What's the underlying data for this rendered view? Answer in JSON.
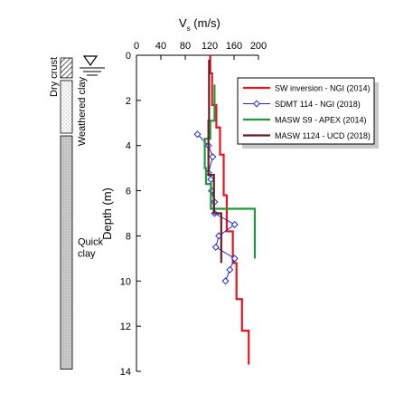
{
  "chart_data": {
    "type": "line",
    "xlabel_main": "V",
    "xlabel_sub": "s",
    "xlabel_unit": " (m/s)",
    "ylabel": "Depth (m)",
    "xlim": [
      0,
      200
    ],
    "ylim": [
      0,
      14
    ],
    "x_axis_position": "top",
    "y_inverted": true,
    "grid": false,
    "legend_position": "top-right",
    "xticks": [
      "0",
      "40",
      "80",
      "120",
      "160",
      "200"
    ],
    "yticks": [
      "0",
      "2",
      "4",
      "6",
      "8",
      "10",
      "12",
      "14"
    ],
    "series": [
      {
        "name": "SW inversion - NGI (2014)",
        "color": "#e8141c",
        "marker": "none",
        "step": true,
        "points": [
          [
            121,
            0
          ],
          [
            121,
            0.8
          ],
          [
            124,
            0.8
          ],
          [
            124,
            2.2
          ],
          [
            131,
            2.2
          ],
          [
            131,
            3.2
          ],
          [
            137,
            3.2
          ],
          [
            137,
            4.4
          ],
          [
            143,
            4.4
          ],
          [
            143,
            6.2
          ],
          [
            148,
            6.2
          ],
          [
            148,
            7.8
          ],
          [
            158,
            7.8
          ],
          [
            158,
            9.2
          ],
          [
            164,
            9.2
          ],
          [
            164,
            10.8
          ],
          [
            173,
            10.8
          ],
          [
            173,
            12.2
          ],
          [
            184,
            12.2
          ],
          [
            184,
            13.7
          ]
        ]
      },
      {
        "name": "SDMT 114 - NGI (2018)",
        "color": "#1a2ad8",
        "marker": "diamond",
        "step": false,
        "points": [
          [
            100,
            3.5
          ],
          [
            118,
            4.0
          ],
          [
            125,
            4.5
          ],
          [
            118,
            5.2
          ],
          [
            122,
            5.5
          ],
          [
            123,
            6.0
          ],
          [
            128,
            6.5
          ],
          [
            128,
            7.0
          ],
          [
            161,
            7.5
          ],
          [
            135,
            8.0
          ],
          [
            130,
            8.5
          ],
          [
            161,
            9.0
          ],
          [
            153,
            9.5
          ],
          [
            146,
            10.0
          ]
        ]
      },
      {
        "name": "MASW S9 - APEX (2014)",
        "color": "#1f9a3a",
        "marker": "none",
        "step": true,
        "points": [
          [
            128,
            1.3
          ],
          [
            128,
            2.9
          ],
          [
            121,
            2.9
          ],
          [
            121,
            3.7
          ],
          [
            112,
            3.7
          ],
          [
            112,
            5.0
          ],
          [
            114,
            5.0
          ],
          [
            114,
            5.7
          ],
          [
            122,
            5.7
          ],
          [
            122,
            6.8
          ],
          [
            194,
            6.8
          ],
          [
            194,
            9.0
          ]
        ]
      },
      {
        "name": "MASW 1124 - UCD (2018)",
        "color": "#6b1e20",
        "marker": "none",
        "step": true,
        "points": [
          [
            119,
            0.2
          ],
          [
            119,
            2.9
          ],
          [
            118,
            2.9
          ],
          [
            118,
            5.3
          ],
          [
            127,
            5.3
          ],
          [
            127,
            7.0
          ],
          [
            139,
            7.0
          ],
          [
            139,
            9.2
          ]
        ]
      }
    ]
  },
  "soil_column": {
    "layers": [
      {
        "label": "Dry crust",
        "top": 0.0,
        "bottom": 1.0,
        "pattern": "hatch"
      },
      {
        "label": "Weathered clay",
        "top": 1.0,
        "bottom": 3.45,
        "pattern": "dots"
      },
      {
        "label": "Quick\nclay",
        "top": 3.45,
        "bottom": 13.9,
        "pattern": "grey"
      }
    ]
  },
  "water_table": {
    "depth": 0.0,
    "symbol": "inverted-triangle"
  },
  "colors": {
    "axis": "#000000",
    "legend_shadow": "#c8c8c8"
  }
}
